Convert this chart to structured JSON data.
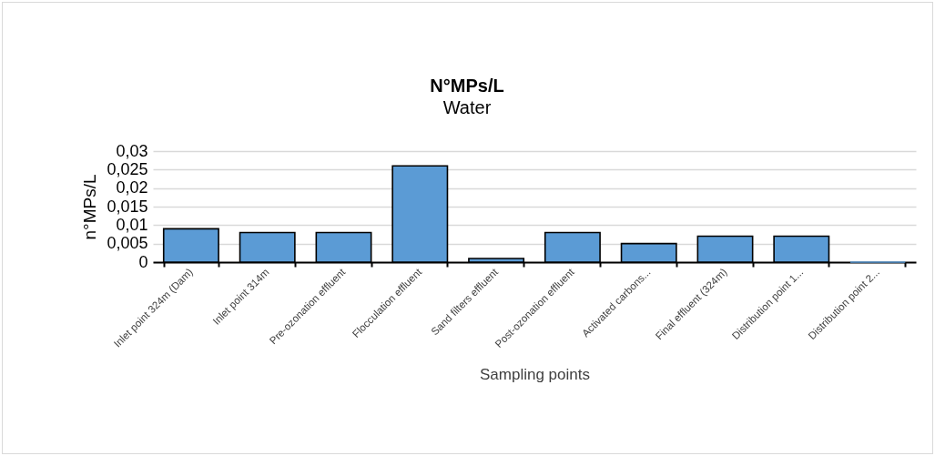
{
  "chart_data": {
    "type": "bar",
    "title": "N°MPs/L",
    "subtitle": "Water",
    "xlabel": "Sampling points",
    "ylabel": "n°MPs/L",
    "categories": [
      "Inlet point 324m (Dam)",
      "Inlet point 314m",
      "Pre-ozonation effluent",
      "Flocculation effluent",
      "Sand filters effluent",
      "Post-ozonation effluent",
      "Activated carbons...",
      "Final effluent (324m)",
      "Distribution point 1...",
      "Distribution point 2..."
    ],
    "values": [
      0.009,
      0.008,
      0.008,
      0.026,
      0.001,
      0.008,
      0.005,
      0.007,
      0.007,
      0
    ],
    "color": "#5b9bd5",
    "ylim": [
      0,
      0.03
    ],
    "yticks": [
      0,
      {
        "value": 0.005,
        "label": "0,005"
      },
      {
        "value": 0.01,
        "label": "0,01"
      },
      {
        "value": 0.015,
        "label": "0,015"
      },
      {
        "value": 0.02,
        "label": "0,02"
      },
      {
        "value": 0.025,
        "label": "0,025"
      },
      {
        "value": 0.03,
        "label": "0,03"
      }
    ],
    "grid": "y"
  }
}
